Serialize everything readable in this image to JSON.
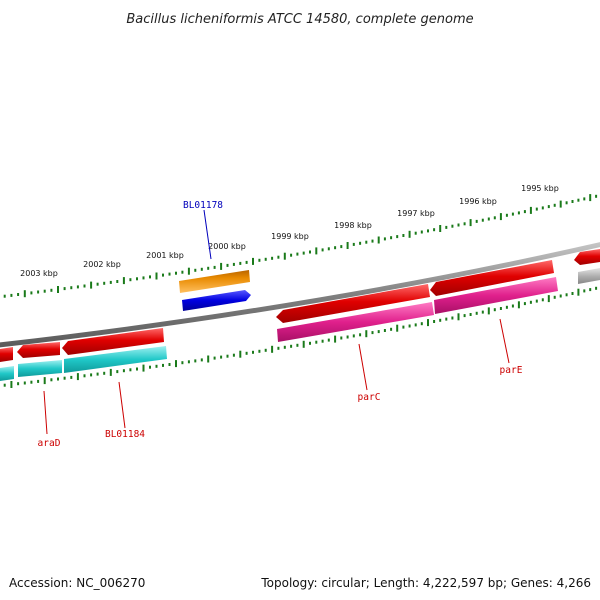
{
  "title": "Bacillus licheniformis ATCC 14580, complete genome",
  "footer": {
    "accession": "Accession: NC_006270",
    "stats": "Topology: circular; Length: 4,222,597 bp; Genes: 4,266"
  },
  "ruler": {
    "tick_color": "#1a7a1a",
    "labels": [
      "2003 kbp",
      "2002 kbp",
      "2001 kbp",
      "2000 kbp",
      "1999 kbp",
      "1998 kbp",
      "1997 kbp",
      "1996 kbp",
      "1995 kbp"
    ]
  },
  "backbone": {
    "color": "#808080"
  },
  "labels": {
    "BL01178": "BL01178",
    "araD": "araD",
    "BL01184": "BL01184",
    "parC": "parC",
    "parE": "parE"
  },
  "colors": {
    "cds_red": "#e00000",
    "gene_cyan": "#20c8c8",
    "gene_magenta": "#e0208c",
    "orange": "#e88a00",
    "blue": "#0000e0",
    "gray_gene": "#b0b0b0",
    "label_blue": "#0000bb",
    "label_red": "#cc0000"
  }
}
